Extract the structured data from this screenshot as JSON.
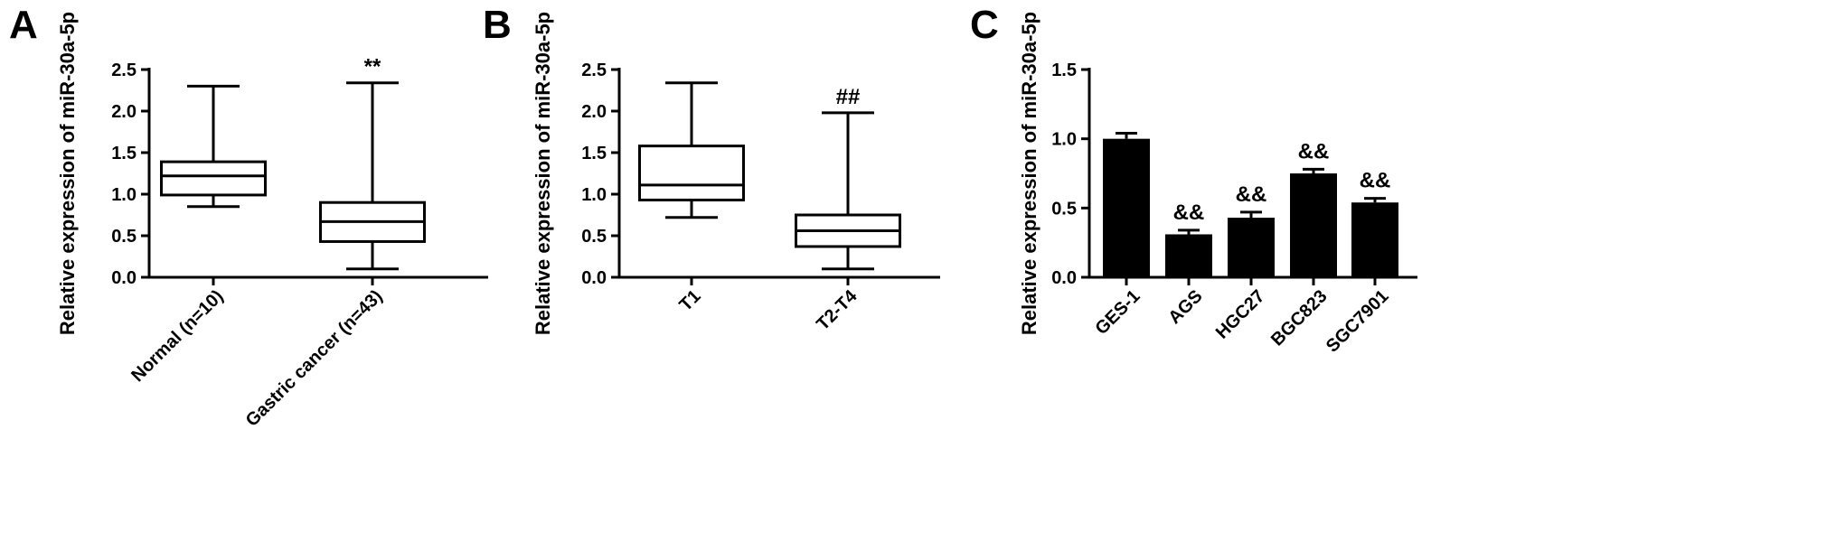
{
  "chart_data": [
    {
      "type": "box",
      "panel": "A",
      "ylabel": "Relative expression of miR-30a-5p",
      "ylim": [
        0,
        2.5
      ],
      "yticks": [
        "0.0",
        "0.5",
        "1.0",
        "1.5",
        "2.0",
        "2.5"
      ],
      "categories": [
        "Normal (n=10)",
        "Gastric cancer (n=43)"
      ],
      "boxes": [
        {
          "min": 0.85,
          "q1": 0.99,
          "median": 1.22,
          "q3": 1.39,
          "max": 2.3,
          "annotation": ""
        },
        {
          "min": 0.1,
          "q1": 0.43,
          "median": 0.67,
          "q3": 0.9,
          "max": 2.34,
          "annotation": "**"
        }
      ]
    },
    {
      "type": "box",
      "panel": "B",
      "ylabel": "Relative expression of miR-30a-5p",
      "ylim": [
        0,
        2.5
      ],
      "yticks": [
        "0.0",
        "0.5",
        "1.0",
        "1.5",
        "2.0",
        "2.5"
      ],
      "categories": [
        "T1",
        "T2-T4"
      ],
      "boxes": [
        {
          "min": 0.72,
          "q1": 0.93,
          "median": 1.11,
          "q3": 1.58,
          "max": 2.34,
          "annotation": ""
        },
        {
          "min": 0.1,
          "q1": 0.37,
          "median": 0.56,
          "q3": 0.75,
          "max": 1.98,
          "annotation": "##"
        }
      ]
    },
    {
      "type": "bar",
      "panel": "C",
      "ylabel": "Relative expression of miR-30a-5p",
      "ylim": [
        0,
        1.5
      ],
      "yticks": [
        "0.0",
        "0.5",
        "1.0",
        "1.5"
      ],
      "categories": [
        "GES-1",
        "AGS",
        "HGC27",
        "BGC823",
        "SGC7901"
      ],
      "values": [
        1.0,
        0.31,
        0.43,
        0.75,
        0.54
      ],
      "errors": [
        0.04,
        0.03,
        0.04,
        0.03,
        0.03
      ],
      "annotations": [
        "",
        "&&",
        "&&",
        "&&",
        "&&"
      ]
    }
  ]
}
